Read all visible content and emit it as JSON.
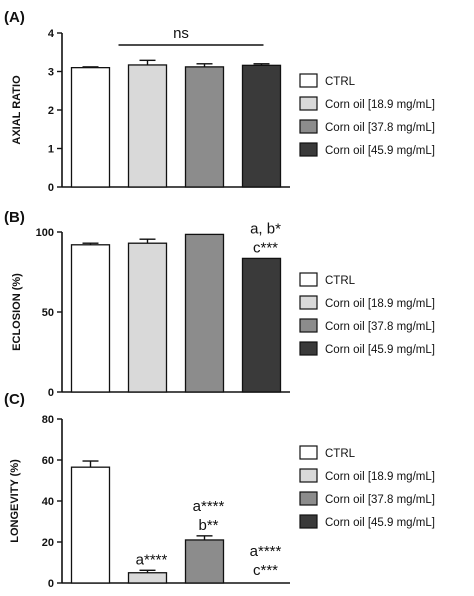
{
  "colors": {
    "axis": "#111111",
    "series": [
      "#ffffff",
      "#d9d9d9",
      "#8c8c8c",
      "#3a3a3a"
    ]
  },
  "chart_data": [
    {
      "type": "bar",
      "panel_label": "(A)",
      "ylabel": "AXIAL RATIO",
      "categories": [
        "CTRL",
        "Corn oil [18.9 mg/mL]",
        "Corn oil [37.8 mg/mL]",
        "Corn oil [45.9 mg/mL]"
      ],
      "values": [
        3.1,
        3.17,
        3.12,
        3.16
      ],
      "errors": [
        0.02,
        0.12,
        0.08,
        0.04
      ],
      "ylim": [
        0,
        4
      ],
      "yticks": [
        "0",
        "1",
        "2",
        "3",
        "4"
      ],
      "significance": "ns",
      "annotations": [
        "",
        "",
        "",
        ""
      ],
      "legend": [
        "CTRL",
        "Corn oil [18.9 mg/mL]",
        "Corn oil [37.8 mg/mL]",
        "Corn oil [45.9 mg/mL]"
      ],
      "legend_position": "right",
      "grid": false
    },
    {
      "type": "bar",
      "panel_label": "(B)",
      "ylabel": "ECLOSION (%)",
      "categories": [
        "CTRL",
        "Corn oil [18.9 mg/mL]",
        "Corn oil [37.8 mg/mL]",
        "Corn oil [45.9 mg/mL]"
      ],
      "values": [
        92,
        93,
        98.5,
        83.5
      ],
      "errors": [
        1.0,
        2.5,
        0.0,
        0.0
      ],
      "ylim": [
        0,
        100
      ],
      "yticks": [
        "0",
        "50",
        "100"
      ],
      "annotations": [
        "",
        "",
        "",
        "a, b*\nc***"
      ],
      "legend": [
        "CTRL",
        "Corn oil [18.9 mg/mL]",
        "Corn oil [37.8 mg/mL]",
        "Corn oil [45.9 mg/mL]"
      ],
      "legend_position": "right",
      "grid": false
    },
    {
      "type": "bar",
      "panel_label": "(C)",
      "ylabel": "LONGEVITY (%)",
      "categories": [
        "CTRL",
        "Corn oil [18.9 mg/mL]",
        "Corn oil [37.8 mg/mL]",
        "Corn oil [45.9 mg/mL]"
      ],
      "values": [
        56.5,
        5,
        21,
        0
      ],
      "errors": [
        3.0,
        1.2,
        2.0,
        0
      ],
      "ylim": [
        0,
        80
      ],
      "yticks": [
        "0",
        "20",
        "40",
        "60",
        "80"
      ],
      "annotations": [
        "",
        "a****",
        "a****\nb**",
        "a****\nc***"
      ],
      "legend": [
        "CTRL",
        "Corn oil [18.9 mg/mL]",
        "Corn oil [37.8 mg/mL]",
        "Corn oil [45.9 mg/mL]"
      ],
      "legend_position": "right",
      "grid": false
    }
  ]
}
